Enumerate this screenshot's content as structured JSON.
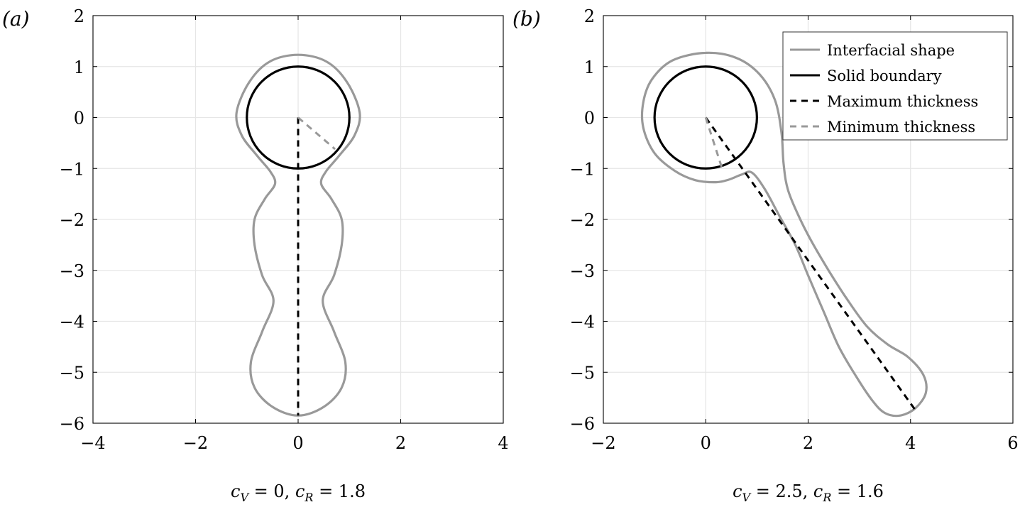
{
  "colors": {
    "interfacial": "#999999",
    "solid": "#000000",
    "max_thickness": "#000000",
    "min_thickness": "#999999",
    "grid": "#e6e6e6"
  },
  "chart_data": [
    {
      "type": "line",
      "panel_label": "(a)",
      "caption": "c_V = 0, c_R = 1.8",
      "xlim": [
        -4,
        4
      ],
      "ylim": [
        -6,
        2
      ],
      "xticks": [
        -4,
        -2,
        0,
        2,
        4
      ],
      "yticks": [
        2,
        1,
        0,
        -1,
        -2,
        -3,
        -4,
        -5,
        -6
      ],
      "grid": true,
      "series": [
        {
          "name": "Interfacial shape",
          "style": "solid",
          "points": [
            [
              0,
              1.23
            ],
            [
              -0.55,
              1.1
            ],
            [
              -0.95,
              0.7
            ],
            [
              -1.2,
              0.1
            ],
            [
              -1.1,
              -0.35
            ],
            [
              -0.8,
              -0.75
            ],
            [
              -0.55,
              -1.05
            ],
            [
              -0.45,
              -1.3
            ],
            [
              -0.65,
              -1.6
            ],
            [
              -0.85,
              -2.0
            ],
            [
              -0.85,
              -2.5
            ],
            [
              -0.7,
              -3.1
            ],
            [
              -0.48,
              -3.6
            ],
            [
              -0.7,
              -4.2
            ],
            [
              -0.92,
              -4.8
            ],
            [
              -0.85,
              -5.3
            ],
            [
              -0.5,
              -5.68
            ],
            [
              0,
              -5.85
            ],
            [
              0.5,
              -5.68
            ],
            [
              0.85,
              -5.3
            ],
            [
              0.92,
              -4.8
            ],
            [
              0.7,
              -4.2
            ],
            [
              0.48,
              -3.6
            ],
            [
              0.7,
              -3.1
            ],
            [
              0.85,
              -2.5
            ],
            [
              0.85,
              -2.0
            ],
            [
              0.65,
              -1.6
            ],
            [
              0.45,
              -1.3
            ],
            [
              0.55,
              -1.05
            ],
            [
              0.8,
              -0.75
            ],
            [
              1.1,
              -0.35
            ],
            [
              1.2,
              0.1
            ],
            [
              0.95,
              0.7
            ],
            [
              0.55,
              1.1
            ],
            [
              0,
              1.23
            ]
          ]
        },
        {
          "name": "Solid boundary",
          "style": "circle",
          "center": [
            0,
            0
          ],
          "radius": 1
        },
        {
          "name": "Maximum thickness",
          "style": "dashed",
          "points": [
            [
              0,
              0
            ],
            [
              0,
              -5.85
            ]
          ]
        },
        {
          "name": "Minimum thickness",
          "style": "dashed",
          "points": [
            [
              0,
              0
            ],
            [
              0.72,
              -0.62
            ]
          ]
        }
      ]
    },
    {
      "type": "line",
      "panel_label": "(b)",
      "caption": "c_V = 2.5, c_R = 1.6",
      "xlim": [
        -2,
        6
      ],
      "ylim": [
        -6,
        2
      ],
      "xticks": [
        -2,
        0,
        2,
        4,
        6
      ],
      "yticks": [
        2,
        1,
        0,
        -1,
        -2,
        -3,
        -4,
        -5,
        -6
      ],
      "grid": true,
      "legend_position": "top-right",
      "legend": [
        "Interfacial shape",
        "Solid boundary",
        "Maximum thickness",
        "Minimum thickness"
      ],
      "series": [
        {
          "name": "Interfacial shape",
          "style": "solid",
          "points": [
            [
              0,
              1.27
            ],
            [
              0.6,
              1.17
            ],
            [
              1.05,
              0.85
            ],
            [
              1.35,
              0.35
            ],
            [
              1.48,
              -0.3
            ],
            [
              1.52,
              -0.9
            ],
            [
              1.6,
              -1.4
            ],
            [
              1.8,
              -1.9
            ],
            [
              2.05,
              -2.4
            ],
            [
              2.4,
              -3.0
            ],
            [
              2.75,
              -3.55
            ],
            [
              3.15,
              -4.1
            ],
            [
              3.55,
              -4.45
            ],
            [
              3.95,
              -4.7
            ],
            [
              4.25,
              -5.05
            ],
            [
              4.3,
              -5.4
            ],
            [
              4.1,
              -5.7
            ],
            [
              3.8,
              -5.85
            ],
            [
              3.5,
              -5.8
            ],
            [
              3.25,
              -5.55
            ],
            [
              2.95,
              -5.1
            ],
            [
              2.6,
              -4.5
            ],
            [
              2.3,
              -3.8
            ],
            [
              2.0,
              -3.1
            ],
            [
              1.75,
              -2.5
            ],
            [
              1.45,
              -1.95
            ],
            [
              1.15,
              -1.4
            ],
            [
              0.9,
              -1.08
            ],
            [
              0.7,
              -1.12
            ],
            [
              0.45,
              -1.22
            ],
            [
              0.2,
              -1.27
            ],
            [
              -0.2,
              -1.23
            ],
            [
              -0.6,
              -1.05
            ],
            [
              -1.0,
              -0.7
            ],
            [
              -1.22,
              -0.2
            ],
            [
              -1.22,
              0.3
            ],
            [
              -1.05,
              0.75
            ],
            [
              -0.65,
              1.12
            ],
            [
              0,
              1.27
            ]
          ]
        },
        {
          "name": "Solid boundary",
          "style": "circle",
          "center": [
            0,
            0
          ],
          "radius": 1
        },
        {
          "name": "Maximum thickness",
          "style": "dashed",
          "points": [
            [
              0,
              0
            ],
            [
              4.1,
              -5.75
            ]
          ]
        },
        {
          "name": "Minimum thickness",
          "style": "dashed",
          "points": [
            [
              0,
              0
            ],
            [
              0.32,
              -1.0
            ]
          ]
        }
      ]
    }
  ]
}
